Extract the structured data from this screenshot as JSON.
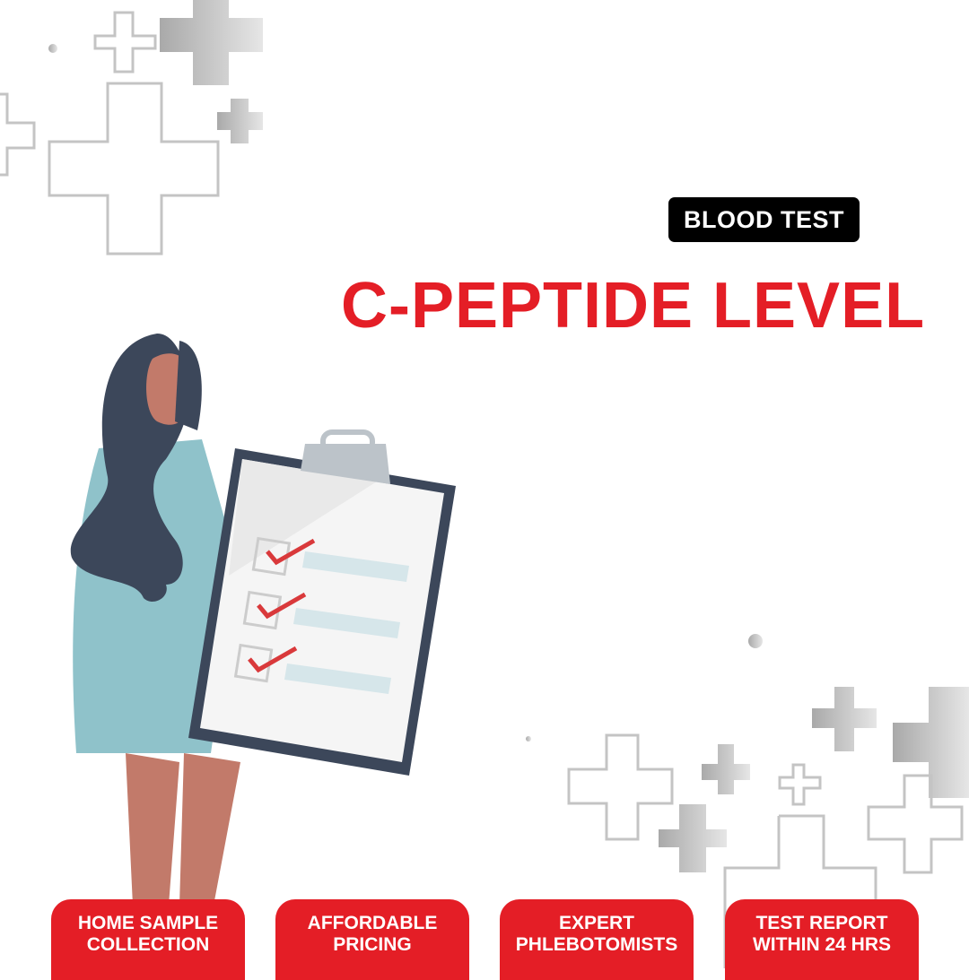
{
  "tag": {
    "label": "BLOOD TEST"
  },
  "title": "C-PEPTIDE LEVEL",
  "features": [
    {
      "line1": "HOME SAMPLE",
      "line2": "COLLECTION"
    },
    {
      "line1": "AFFORDABLE",
      "line2": "PRICING"
    },
    {
      "line1": "EXPERT",
      "line2": "PHLEBOTOMISTS"
    },
    {
      "line1": "TEST REPORT",
      "line2": "WITHIN 24 HRS"
    }
  ],
  "colors": {
    "accent": "#e41e26",
    "tag_bg": "#000000",
    "dress": "#8fc2ca",
    "hair": "#3c475a",
    "skin": "#c27a6a"
  }
}
